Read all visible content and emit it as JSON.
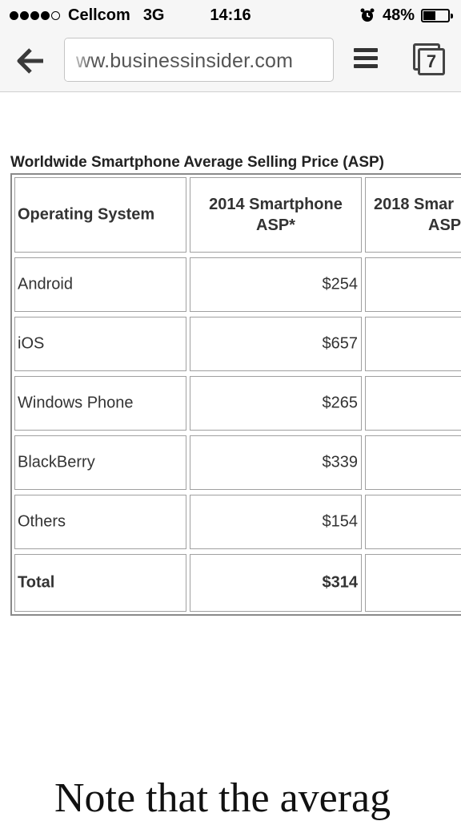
{
  "status_bar": {
    "carrier": "Cellcom",
    "network": "3G",
    "time": "14:16",
    "battery": "48%",
    "battery_level": 0.48,
    "signal_bars_filled": 4,
    "signal_bars_total": 5
  },
  "browser": {
    "url": "ww.businessinsider.com",
    "tab_count": "7"
  },
  "table": {
    "title": "Worldwide Smartphone Average Selling Price (ASP)",
    "headers": {
      "col1": "Operating System",
      "col2_line1": "2014 Smartphone",
      "col2_line2": "ASP*",
      "col3_line1": "2018 Smar",
      "col3_line2": "ASP"
    },
    "rows": [
      {
        "os": "Android",
        "asp_2014": "$254"
      },
      {
        "os": "iOS",
        "asp_2014": "$657"
      },
      {
        "os": "Windows Phone",
        "asp_2014": "$265"
      },
      {
        "os": "BlackBerry",
        "asp_2014": "$339"
      },
      {
        "os": "Others",
        "asp_2014": "$154"
      },
      {
        "os": "Total",
        "asp_2014": "$314"
      }
    ]
  },
  "article": {
    "text": "Note that the averag"
  }
}
